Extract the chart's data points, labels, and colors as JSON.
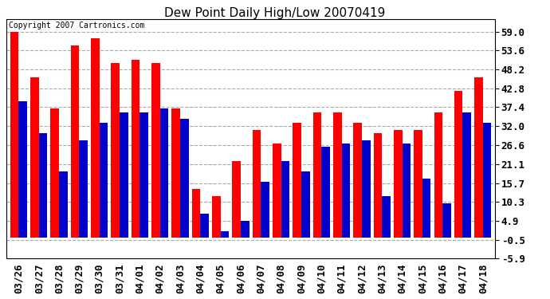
{
  "title": "Dew Point Daily High/Low 20070419",
  "copyright": "Copyright 2007 Cartronics.com",
  "dates": [
    "03/26",
    "03/27",
    "03/28",
    "03/29",
    "03/30",
    "03/31",
    "04/01",
    "04/02",
    "04/03",
    "04/04",
    "04/05",
    "04/06",
    "04/07",
    "04/08",
    "04/09",
    "04/10",
    "04/11",
    "04/12",
    "04/13",
    "04/14",
    "04/15",
    "04/16",
    "04/17",
    "04/18"
  ],
  "highs": [
    59.0,
    46.0,
    37.0,
    55.0,
    57.0,
    50.0,
    51.0,
    50.0,
    37.0,
    14.0,
    12.0,
    22.0,
    31.0,
    27.0,
    33.0,
    36.0,
    36.0,
    33.0,
    30.0,
    31.0,
    31.0,
    36.0,
    42.0,
    46.0
  ],
  "lows": [
    39.0,
    30.0,
    19.0,
    28.0,
    33.0,
    36.0,
    36.0,
    37.0,
    34.0,
    7.0,
    2.0,
    5.0,
    16.0,
    22.0,
    19.0,
    26.0,
    27.0,
    28.0,
    12.0,
    27.0,
    17.0,
    10.0,
    36.0,
    33.0
  ],
  "high_color": "#ff0000",
  "low_color": "#0000cc",
  "bg_color": "#ffffff",
  "grid_color": "#aaaaaa",
  "ylim_min": -5.9,
  "ylim_max": 62.5,
  "yticks": [
    -5.9,
    -0.5,
    4.9,
    10.3,
    15.7,
    21.1,
    26.6,
    32.0,
    37.4,
    42.8,
    48.2,
    53.6,
    59.0
  ],
  "title_fontsize": 11,
  "tick_fontsize": 9,
  "copyright_fontsize": 7
}
